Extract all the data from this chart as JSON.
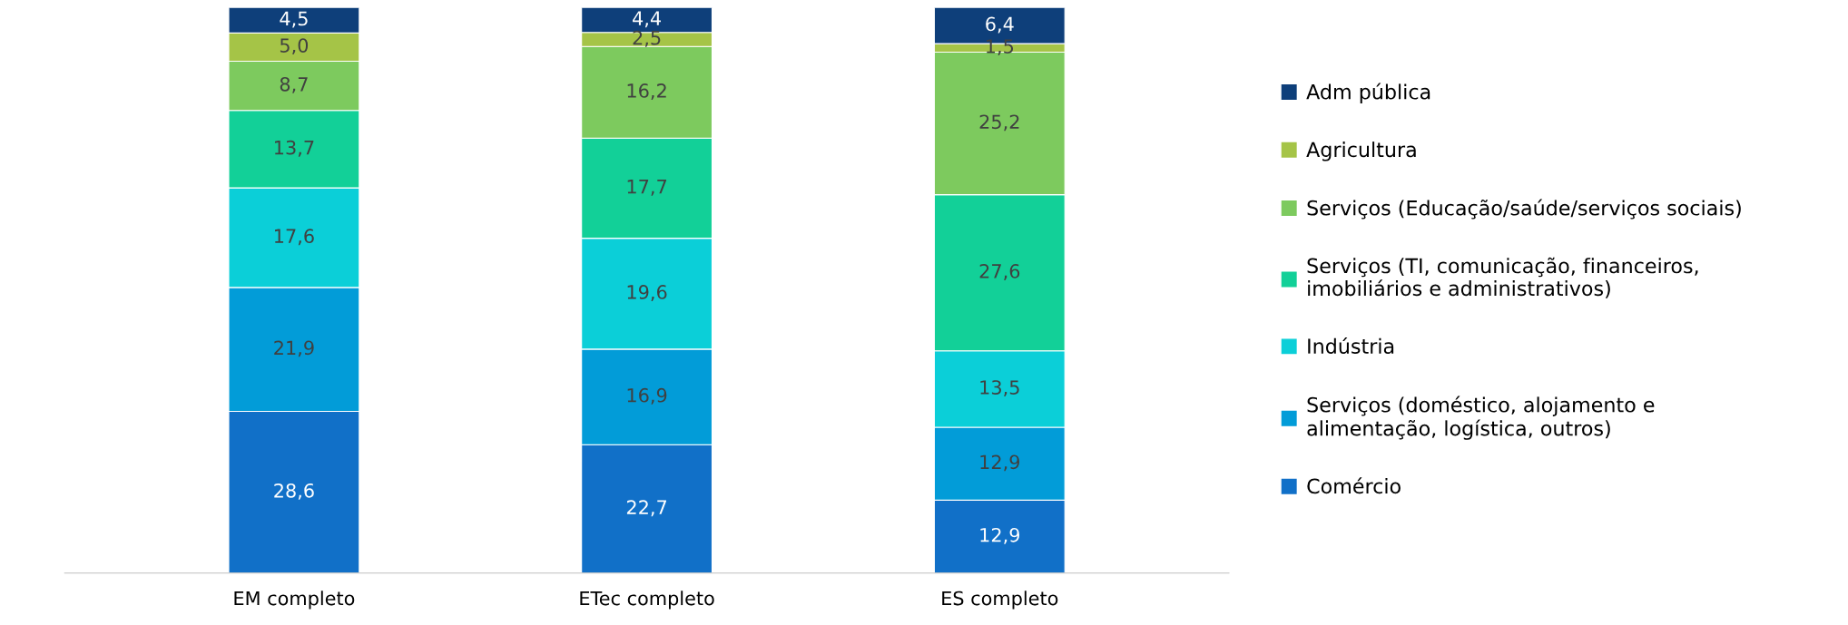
{
  "chart_data": {
    "type": "bar",
    "stacked": true,
    "legend": "right",
    "grid": false,
    "categories": [
      "EM completo",
      "ETec completo",
      "ES completo"
    ],
    "series": [
      {
        "name": "Comércio",
        "color": "#1170c8",
        "values": [
          28.6,
          22.7,
          12.9
        ],
        "value_labels": [
          "28,6",
          "22,7",
          "12,9"
        ]
      },
      {
        "name": "Serviços (doméstico, alojamento e\nalimentação, logística, outros)",
        "color": "#029cd8",
        "values": [
          21.9,
          16.9,
          12.9
        ],
        "value_labels": [
          "21,9",
          "16,9",
          "12,9"
        ]
      },
      {
        "name": "Indústria",
        "color": "#0bcfd8",
        "values": [
          17.6,
          19.6,
          13.5
        ],
        "value_labels": [
          "17,6",
          "19,6",
          "13,5"
        ]
      },
      {
        "name": "Serviços (TI, comunicação, financeiros,\nimobiliários e administrativos)",
        "color": "#12d098",
        "values": [
          13.7,
          17.7,
          27.6
        ],
        "value_labels": [
          "13,7",
          "17,7",
          "27,6"
        ]
      },
      {
        "name": "Serviços (Educação/saúde/serviços sociais)",
        "color": "#7dca5e",
        "values": [
          8.7,
          16.2,
          25.2
        ],
        "value_labels": [
          "8,7",
          "16,2",
          "25,2"
        ]
      },
      {
        "name": "Agricultura",
        "color": "#a5c447",
        "values": [
          5.0,
          2.5,
          1.5
        ],
        "value_labels": [
          "5,0",
          "2,5",
          "1,5"
        ]
      },
      {
        "name": "Adm pública",
        "color": "#0e3f7a",
        "values": [
          4.5,
          4.4,
          6.4
        ],
        "value_labels": [
          "4,5",
          "4,4",
          "6,4"
        ]
      }
    ]
  }
}
